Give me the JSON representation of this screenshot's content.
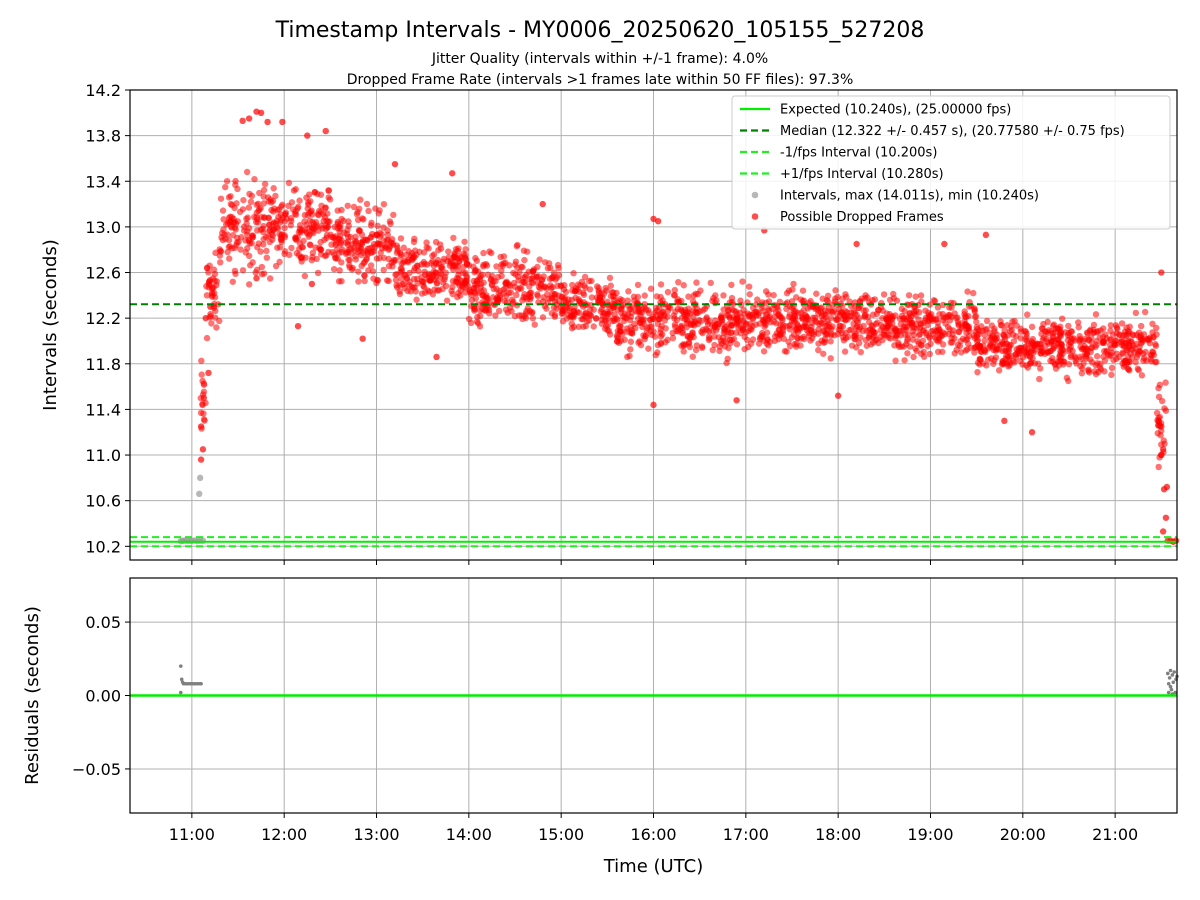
{
  "chart_data": [
    {
      "type": "scatter",
      "title": "Timestamp Intervals - MY0006_20250620_105155_527208",
      "subtitle_lines": [
        "Jitter Quality (intervals within +/-1 frame): 4.0%",
        "Dropped Frame Rate (intervals >1 frames late within 50 FF files): 97.3%"
      ],
      "xlabel": "",
      "ylabel": "Intervals (seconds)",
      "xlim_hours": [
        10.33,
        21.67
      ],
      "ylim": [
        10.08,
        14.2
      ],
      "x_ticks": [
        {
          "h": 11,
          "label": "11:00"
        },
        {
          "h": 12,
          "label": "12:00"
        },
        {
          "h": 13,
          "label": "13:00"
        },
        {
          "h": 14,
          "label": "14:00"
        },
        {
          "h": 15,
          "label": "15:00"
        },
        {
          "h": 16,
          "label": "16:00"
        },
        {
          "h": 17,
          "label": "17:00"
        },
        {
          "h": 18,
          "label": "18:00"
        },
        {
          "h": 19,
          "label": "19:00"
        },
        {
          "h": 20,
          "label": "20:00"
        },
        {
          "h": 21,
          "label": "21:00"
        }
      ],
      "y_ticks": [
        {
          "v": 10.2,
          "label": "10.2"
        },
        {
          "v": 10.6,
          "label": "10.6"
        },
        {
          "v": 11.0,
          "label": "11.0"
        },
        {
          "v": 11.4,
          "label": "11.4"
        },
        {
          "v": 11.8,
          "label": "11.8"
        },
        {
          "v": 12.2,
          "label": "12.2"
        },
        {
          "v": 12.6,
          "label": "12.6"
        },
        {
          "v": 13.0,
          "label": "13.0"
        },
        {
          "v": 13.4,
          "label": "13.4"
        },
        {
          "v": 13.8,
          "label": "13.8"
        },
        {
          "v": 14.2,
          "label": "14.2"
        }
      ],
      "grid": true,
      "legend_position": "top-right",
      "lines": [
        {
          "name": "Expected (10.240s), (25.00000 fps)",
          "y": 10.24,
          "color": "#00ee00",
          "style": "solid"
        },
        {
          "name": "Median (12.322 +/- 0.457 s), (20.77580 +/- 0.75 fps)",
          "y": 12.322,
          "color": "#008000",
          "style": "dashed"
        },
        {
          "name": "-1/fps Interval (10.200s)",
          "y": 10.2,
          "color": "#22ee22",
          "style": "dashed"
        },
        {
          "name": "+1/fps Interval (10.280s)",
          "y": 10.28,
          "color": "#22ee22",
          "style": "dashed"
        }
      ],
      "series": [
        {
          "name": "Intervals, max (14.011s), min (10.240s)",
          "color": "#999999",
          "points": [
            [
              10.88,
              10.245
            ],
            [
              10.9,
              10.248
            ],
            [
              10.92,
              10.25
            ],
            [
              10.95,
              10.247
            ],
            [
              10.98,
              10.249
            ],
            [
              11.0,
              10.248
            ],
            [
              11.03,
              10.25
            ],
            [
              11.06,
              10.246
            ],
            [
              11.09,
              10.249
            ],
            [
              11.12,
              10.248
            ],
            [
              11.08,
              10.66
            ],
            [
              11.09,
              10.8
            ]
          ]
        },
        {
          "name": "Possible Dropped Frames",
          "color": "#ff0000",
          "bands": [
            {
              "x": [
                11.09,
                11.15
              ],
              "y": [
                10.95,
                12.0
              ]
            },
            {
              "x": [
                11.15,
                11.3
              ],
              "y": [
                11.9,
                12.9
              ]
            },
            {
              "x": [
                11.3,
                11.9
              ],
              "y": [
                12.4,
                13.6
              ]
            },
            {
              "x": [
                11.9,
                12.5
              ],
              "y": [
                12.5,
                13.5
              ]
            },
            {
              "x": [
                12.5,
                13.2
              ],
              "y": [
                12.4,
                13.3
              ]
            },
            {
              "x": [
                13.2,
                14.0
              ],
              "y": [
                12.2,
                13.0
              ]
            },
            {
              "x": [
                14.0,
                15.0
              ],
              "y": [
                12.0,
                12.9
              ]
            },
            {
              "x": [
                15.0,
                15.6
              ],
              "y": [
                11.95,
                12.7
              ]
            },
            {
              "x": [
                15.6,
                17.0
              ],
              "y": [
                11.75,
                12.6
              ]
            },
            {
              "x": [
                17.0,
                18.5
              ],
              "y": [
                11.8,
                12.55
              ]
            },
            {
              "x": [
                18.5,
                19.5
              ],
              "y": [
                11.75,
                12.5
              ]
            },
            {
              "x": [
                19.5,
                21.0
              ],
              "y": [
                11.6,
                12.3
              ]
            },
            {
              "x": [
                21.0,
                21.45
              ],
              "y": [
                11.6,
                12.3
              ]
            },
            {
              "x": [
                21.45,
                21.55
              ],
              "y": [
                10.6,
                11.9
              ]
            }
          ],
          "extra_points": [
            [
              11.55,
              13.93
            ],
            [
              11.62,
              13.95
            ],
            [
              11.7,
              14.01
            ],
            [
              11.75,
              14.0
            ],
            [
              11.82,
              13.92
            ],
            [
              11.98,
              13.92
            ],
            [
              12.25,
              13.8
            ],
            [
              12.45,
              13.84
            ],
            [
              13.2,
              13.55
            ],
            [
              13.82,
              13.47
            ],
            [
              14.8,
              13.2
            ],
            [
              16.0,
              13.07
            ],
            [
              16.05,
              13.05
            ],
            [
              17.2,
              12.97
            ],
            [
              18.2,
              12.85
            ],
            [
              19.15,
              12.85
            ],
            [
              19.6,
              12.93
            ],
            [
              21.5,
              12.6
            ],
            [
              16.0,
              11.44
            ],
            [
              16.9,
              11.48
            ],
            [
              18.0,
              11.52
            ],
            [
              19.8,
              11.3
            ],
            [
              20.1,
              11.2
            ],
            [
              12.85,
              12.02
            ],
            [
              13.65,
              11.86
            ],
            [
              12.15,
              12.13
            ],
            [
              11.7,
              12.55
            ],
            [
              12.3,
              12.5
            ],
            [
              21.57,
              10.25
            ],
            [
              21.6,
              10.25
            ],
            [
              21.63,
              10.24
            ],
            [
              21.66,
              10.25
            ],
            [
              21.52,
              10.33
            ],
            [
              21.55,
              10.45
            ],
            [
              21.53,
              10.7
            ],
            [
              21.56,
              10.72
            ],
            [
              21.5,
              11.0
            ],
            [
              21.52,
              11.05
            ],
            [
              21.47,
              11.3
            ],
            [
              21.5,
              11.25
            ],
            [
              11.1,
              11.25
            ],
            [
              11.12,
              11.05
            ],
            [
              11.1,
              10.96
            ],
            [
              11.13,
              11.5
            ],
            [
              11.18,
              11.72
            ],
            [
              11.15,
              12.2
            ],
            [
              11.2,
              12.3
            ],
            [
              11.22,
              12.42
            ]
          ]
        }
      ]
    },
    {
      "type": "scatter",
      "xlabel": "Time (UTC)",
      "ylabel": "Residuals (seconds)",
      "xlim_hours": [
        10.33,
        21.67
      ],
      "ylim": [
        -0.08,
        0.08
      ],
      "y_ticks": [
        {
          "v": 0.05,
          "label": "0.05"
        },
        {
          "v": 0.0,
          "label": "0.00"
        },
        {
          "v": -0.05,
          "label": "−0.05"
        }
      ],
      "grid": true,
      "zero_line_color": "#00ee00",
      "series": [
        {
          "name": "Residuals",
          "color": "#808080",
          "points": [
            [
              10.88,
              0.02
            ],
            [
              10.88,
              0.002
            ],
            [
              10.89,
              0.011
            ],
            [
              10.9,
              0.009
            ],
            [
              10.91,
              0.008
            ],
            [
              10.93,
              0.008
            ],
            [
              10.95,
              0.008
            ],
            [
              10.97,
              0.008
            ],
            [
              10.99,
              0.008
            ],
            [
              11.01,
              0.008
            ],
            [
              11.03,
              0.008
            ],
            [
              11.05,
              0.008
            ],
            [
              11.07,
              0.008
            ],
            [
              11.09,
              0.008
            ],
            [
              11.1,
              0.008
            ],
            [
              21.57,
              0.015
            ],
            [
              21.58,
              0.008
            ],
            [
              21.59,
              0.012
            ],
            [
              21.6,
              0.017
            ],
            [
              21.61,
              0.004
            ],
            [
              21.62,
              0.014
            ],
            [
              21.63,
              0.009
            ],
            [
              21.64,
              0.016
            ],
            [
              21.65,
              0.002
            ],
            [
              21.66,
              0.011
            ],
            [
              21.67,
              0.013
            ],
            [
              21.58,
              0.002
            ],
            [
              21.6,
              0.006
            ],
            [
              21.62,
              0.001
            ]
          ]
        }
      ]
    }
  ]
}
